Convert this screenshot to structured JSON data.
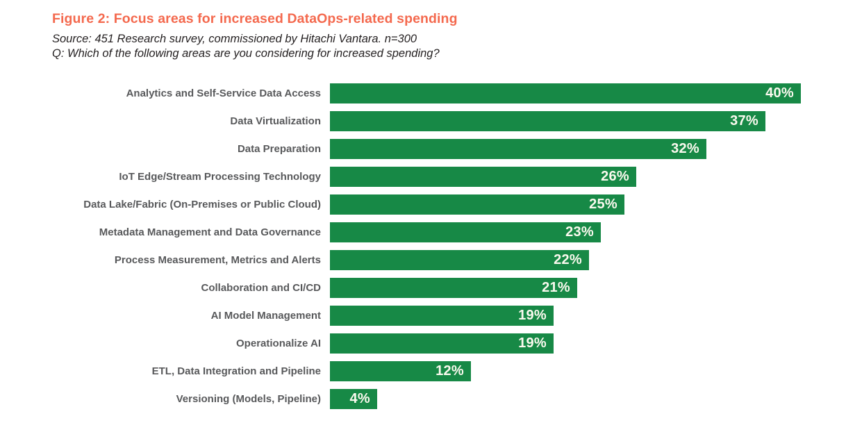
{
  "header": {
    "title": "Figure 2: Focus areas for increased DataOps-related spending",
    "source": "Source: 451 Research survey, commissioned by Hitachi Vantara. n=300",
    "question": "Q: Which of the following areas are you considering for increased spending?"
  },
  "colors": {
    "title": "#f4694e",
    "source_text": "#231f20",
    "category_label": "#58595b",
    "bar": "#178946",
    "value_text": "#fbfaef",
    "background": "#ffffff"
  },
  "chart_data": {
    "type": "bar",
    "orientation": "horizontal",
    "title": "Figure 2: Focus areas for increased DataOps-related spending",
    "subtitle": "Source: 451 Research survey, commissioned by Hitachi Vantara. n=300",
    "question": "Q: Which of the following areas are you considering for increased spending?",
    "categories": [
      "Analytics and Self-Service Data Access",
      "Data Virtualization",
      "Data Preparation",
      "IoT Edge/Stream Processing Technology",
      "Data Lake/Fabric (On-Premises or Public Cloud)",
      "Metadata Management and Data Governance",
      "Process Measurement, Metrics and Alerts",
      "Collaboration and CI/CD",
      "AI Model Management",
      "Operationalize AI",
      "ETL, Data Integration and Pipeline",
      "Versioning (Models, Pipeline)"
    ],
    "values": [
      40,
      37,
      32,
      26,
      25,
      23,
      22,
      21,
      19,
      19,
      12,
      4
    ],
    "value_suffix": "%",
    "xlabel": "",
    "ylabel": "",
    "xlim": [
      0,
      40
    ],
    "grid": false,
    "legend": false,
    "value_labels_position": "inside-end"
  }
}
